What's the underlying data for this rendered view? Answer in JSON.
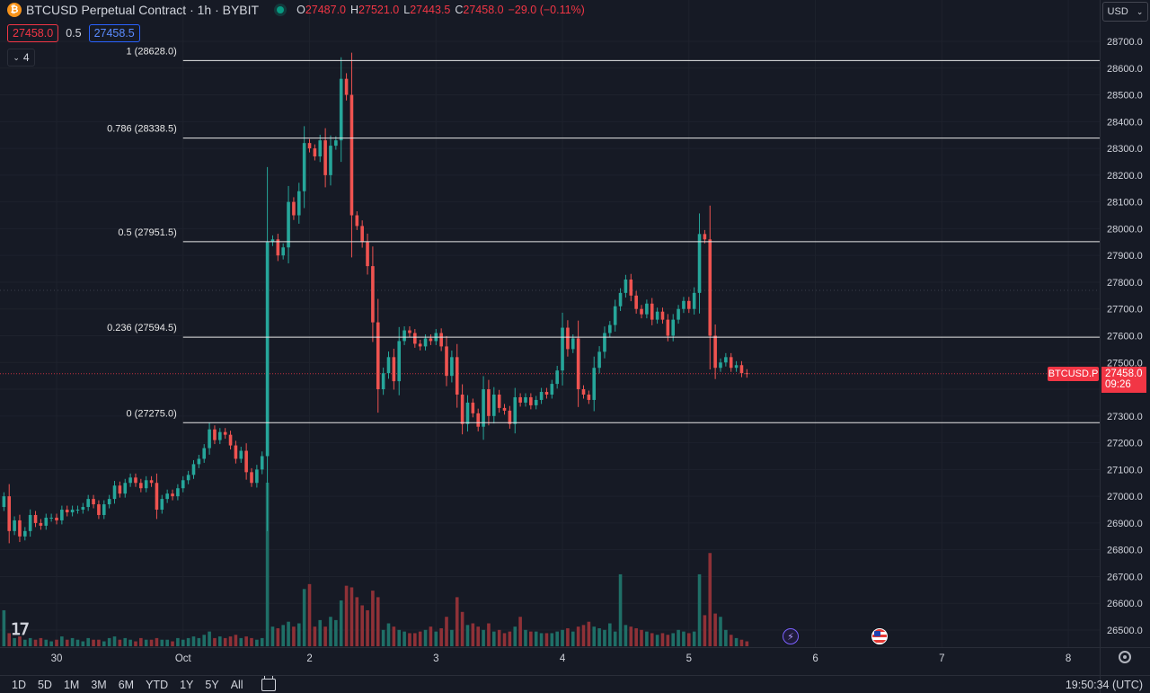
{
  "header": {
    "coin_glyph": "₿",
    "title": "BTCUSD Perpetual Contract · 1h · BYBIT",
    "ohlc": {
      "o_label": "O",
      "o_value": "27487.0",
      "h_label": "H",
      "h_value": "27521.0",
      "l_label": "L",
      "l_value": "27443.5",
      "c_label": "C",
      "c_value": "27458.0",
      "change": "−29.0 (−0.11%)"
    },
    "bid": "27458.0",
    "spread": "0.5",
    "ask": "27458.5",
    "indicator_count": "4",
    "currency": "USD"
  },
  "price_tags": {
    "symbol": "BTCUSD.P",
    "last_price": "27458.0",
    "countdown": "09:26"
  },
  "bottom_bar": {
    "ranges": [
      "1D",
      "5D",
      "1M",
      "3M",
      "6M",
      "YTD",
      "1Y",
      "5Y",
      "All"
    ],
    "clock": "19:50:34 (UTC)"
  },
  "colors": {
    "background": "#161a25",
    "up": "#26a69a",
    "down": "#ef5350",
    "up_volume": "#1f6f67",
    "down_volume": "#8f3137",
    "fib_line": "#e8e8e8",
    "last_price": "#f23645"
  },
  "icons": {
    "logo": "tradingview-logo-icon",
    "event_1": "lightning-bolt-event-icon",
    "event_2": "us-flag-event-icon",
    "settings": "gear-icon",
    "calendar": "calendar-icon"
  },
  "chart_data": {
    "type": "candlestick",
    "interval": "1h",
    "y_range": [
      26450,
      28720
    ],
    "y_ticks": [
      "28700.0",
      "28600.0",
      "28500.0",
      "28400.0",
      "28300.0",
      "28200.0",
      "28100.0",
      "28000.0",
      "27900.0",
      "27800.0",
      "27700.0",
      "27600.0",
      "27500.0",
      "27400.0",
      "27300.0",
      "27200.0",
      "27100.0",
      "27000.0",
      "26900.0",
      "26800.0",
      "26700.0",
      "26600.0",
      "26500.0"
    ],
    "x_ticks": [
      "30",
      "Oct",
      "2",
      "3",
      "4",
      "5",
      "6",
      "7",
      "8"
    ],
    "x_tick_hours": [
      0,
      24,
      48,
      72,
      96,
      120,
      144,
      168,
      192
    ],
    "fib_levels": [
      {
        "label": "1 (28628.0)",
        "price": 28628.0
      },
      {
        "label": "0.786 (28338.5)",
        "price": 28338.5
      },
      {
        "label": "0.5 (27951.5)",
        "price": 27951.5
      },
      {
        "label": "0.236 (27594.5)",
        "price": 27594.5
      },
      {
        "label": "0 (27275.0)",
        "price": 27275.0
      }
    ],
    "fib_start_hour": 24,
    "last_price": 27458.0,
    "start_hour": -10,
    "closes": [
      27000,
      26870,
      26910,
      26850,
      26870,
      26930,
      26900,
      26890,
      26920,
      26920,
      26910,
      26950,
      26940,
      26950,
      26950,
      26960,
      26990,
      26970,
      26930,
      26970,
      26990,
      27040,
      27010,
      27050,
      27070,
      27050,
      27030,
      27060,
      27050,
      26950,
      26990,
      27010,
      27000,
      27030,
      27060,
      27080,
      27120,
      27140,
      27180,
      27250,
      27210,
      27240,
      27230,
      27190,
      27140,
      27170,
      27090,
      27050,
      27100,
      27150,
      27950,
      27960,
      27900,
      27930,
      28100,
      28050,
      28140,
      28320,
      28300,
      28270,
      28330,
      28200,
      28310,
      28330,
      28560,
      28500,
      28050,
      28010,
      27950,
      27860,
      27650,
      27400,
      27460,
      27520,
      27430,
      27580,
      27620,
      27610,
      27570,
      27560,
      27590,
      27580,
      27610,
      27560,
      27450,
      27520,
      27380,
      27270,
      27350,
      27310,
      27260,
      27400,
      27300,
      27380,
      27330,
      27320,
      27270,
      27370,
      27350,
      27370,
      27340,
      27360,
      27390,
      27380,
      27420,
      27470,
      27630,
      27550,
      27590,
      27400,
      27380,
      27360,
      27480,
      27540,
      27610,
      27640,
      27710,
      27760,
      27810,
      27750,
      27700,
      27680,
      27720,
      27660,
      27690,
      27660,
      27600,
      27660,
      27700,
      27730,
      27700,
      27760,
      27980,
      27960,
      27600,
      27480,
      27500,
      27520,
      27480,
      27490,
      27460,
      27458
    ],
    "volume_scale": [
      0,
      1
    ],
    "volumes": [
      0.22,
      0.08,
      0.05,
      0.06,
      0.04,
      0.05,
      0.04,
      0.05,
      0.04,
      0.03,
      0.04,
      0.06,
      0.04,
      0.05,
      0.04,
      0.03,
      0.05,
      0.04,
      0.04,
      0.03,
      0.05,
      0.06,
      0.04,
      0.05,
      0.04,
      0.03,
      0.05,
      0.04,
      0.04,
      0.05,
      0.04,
      0.04,
      0.03,
      0.05,
      0.04,
      0.05,
      0.06,
      0.05,
      0.07,
      0.09,
      0.05,
      0.06,
      0.05,
      0.06,
      0.07,
      0.05,
      0.06,
      0.05,
      0.04,
      0.05,
      1.0,
      0.12,
      0.11,
      0.13,
      0.15,
      0.12,
      0.14,
      0.35,
      0.38,
      0.12,
      0.16,
      0.12,
      0.18,
      0.16,
      0.28,
      0.37,
      0.36,
      0.3,
      0.25,
      0.22,
      0.34,
      0.3,
      0.1,
      0.14,
      0.12,
      0.1,
      0.09,
      0.08,
      0.08,
      0.09,
      0.1,
      0.12,
      0.09,
      0.11,
      0.18,
      0.1,
      0.3,
      0.21,
      0.13,
      0.14,
      0.12,
      0.1,
      0.14,
      0.09,
      0.1,
      0.08,
      0.09,
      0.12,
      0.18,
      0.1,
      0.09,
      0.09,
      0.08,
      0.08,
      0.08,
      0.09,
      0.1,
      0.11,
      0.09,
      0.12,
      0.13,
      0.15,
      0.12,
      0.11,
      0.1,
      0.14,
      0.09,
      0.44,
      0.13,
      0.12,
      0.11,
      0.1,
      0.09,
      0.08,
      0.07,
      0.08,
      0.07,
      0.08,
      0.1,
      0.09,
      0.08,
      0.09,
      0.44,
      0.19,
      0.57,
      0.2,
      0.18,
      0.1,
      0.07,
      0.05,
      0.04,
      0.03
    ]
  }
}
